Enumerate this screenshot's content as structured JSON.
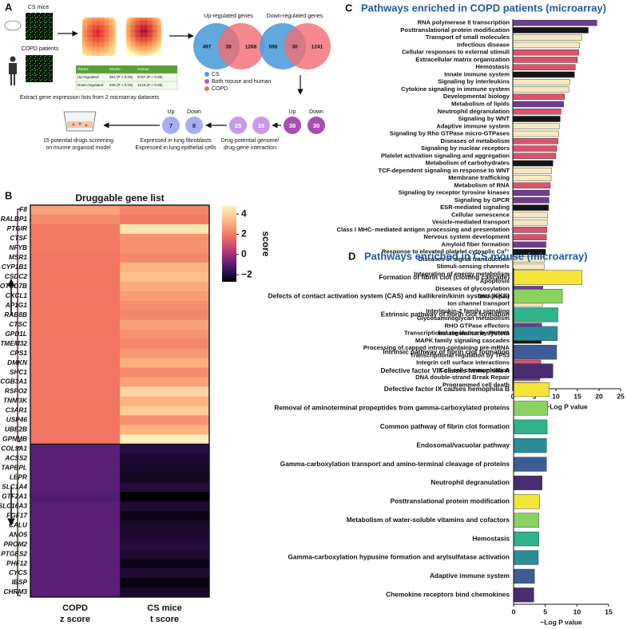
{
  "diagram": {
    "panel": "A",
    "cs_mice": "CS mice",
    "copd_patients": "COPD patients",
    "table": {
      "header": [
        "Genes",
        "Mouse",
        "Human"
      ],
      "rows": [
        [
          "Up-regulated",
          "554 (P < 0.05)",
          "5757 (P < 0.05)"
        ],
        [
          "Down-regulated",
          "639 (P < 0.05)",
          "1518 (P < 0.05)"
        ]
      ]
    },
    "caption": "Extract gene expression lists from 2 microarray datasets",
    "venn_up": {
      "title": "Up-regulated genes",
      "left": "497",
      "both": "38",
      "right": "1268"
    },
    "venn_down": {
      "title": "Down-regulated genes",
      "left": "598",
      "both": "30",
      "right": "1241"
    },
    "legend": [
      "CS",
      "Both mouse and human",
      "COPD"
    ],
    "shared": {
      "up_label": "Up",
      "down_label": "Down",
      "up": "38",
      "down": "30"
    },
    "drug": {
      "up": "25",
      "down": "16",
      "lines": [
        "Drug potential genome/",
        "drug-gene interaction"
      ]
    },
    "expressed": {
      "up_label": "Up",
      "down_label": "Down",
      "up": "7",
      "down": "8",
      "lines": [
        "Expressed in lung fibroblasts",
        "Expressed in lung epithelial cells"
      ]
    },
    "screening": [
      "15 potential drugs screening",
      "on murine organoid model"
    ]
  },
  "chart_data": [
    {
      "type": "heatmap",
      "panel": "B",
      "title": "Druggable gene list",
      "rows": [
        "F8",
        "RALBP1",
        "PTGIR",
        "CTSF",
        "NFYB",
        "MSR1",
        "CYP1B1",
        "CSDC2",
        "OTUD7B",
        "CXCL1",
        "AP1G1",
        "RAB8B",
        "CTSC",
        "GPD1L",
        "TMEM32",
        "CPS1",
        "DMKN",
        "SHC1",
        "SCGB3A1",
        "RSPO2",
        "TNNI3K",
        "C3AR1",
        "USP46",
        "UBE2B",
        "GPNMB",
        "COL9A1",
        "ACSS2",
        "TAPBPL",
        "LEPR",
        "SLC1A4",
        "GTF2A1",
        "SLC16A3",
        "FGF17",
        "CALU",
        "ANO5",
        "PROM2",
        "PTGES2",
        "PHF12",
        "CYCS",
        "IBSP",
        "CHRM3"
      ],
      "columns": [
        "COPD",
        "CS mice"
      ],
      "column_subtitles": [
        "z score",
        "t score"
      ],
      "values": [
        [
          2.8,
          2.2
        ],
        [
          2.4,
          2.0
        ],
        [
          2.0,
          4.4
        ],
        [
          2.0,
          2.5
        ],
        [
          2.0,
          2.5
        ],
        [
          1.9,
          2.3
        ],
        [
          1.9,
          3.2
        ],
        [
          1.9,
          3.5
        ],
        [
          1.9,
          3.0
        ],
        [
          1.9,
          2.7
        ],
        [
          1.9,
          2.4
        ],
        [
          1.9,
          2.3
        ],
        [
          1.9,
          2.8
        ],
        [
          1.9,
          2.5
        ],
        [
          1.9,
          2.3
        ],
        [
          1.9,
          2.6
        ],
        [
          1.9,
          3.1
        ],
        [
          1.9,
          2.4
        ],
        [
          1.9,
          2.8
        ],
        [
          1.9,
          4.0
        ],
        [
          1.9,
          3.2
        ],
        [
          1.9,
          3.8
        ],
        [
          1.9,
          2.5
        ],
        [
          1.9,
          3.2
        ],
        [
          1.9,
          4.6
        ],
        [
          -1.0,
          -1.9
        ],
        [
          -1.0,
          -2.1
        ],
        [
          -1.0,
          -2.2
        ],
        [
          -1.0,
          -2.3
        ],
        [
          -1.0,
          -2.0
        ],
        [
          -1.1,
          -2.7
        ],
        [
          -1.0,
          -2.1
        ],
        [
          -1.0,
          -2.4
        ],
        [
          -1.0,
          -2.2
        ],
        [
          -1.0,
          -2.1
        ],
        [
          -1.0,
          -2.0
        ],
        [
          -1.0,
          -2.1
        ],
        [
          -1.0,
          -2.4
        ],
        [
          -1.0,
          -2.0
        ],
        [
          -1.0,
          -2.5
        ],
        [
          -1.0,
          -2.2
        ]
      ],
      "clim": [
        -2.7,
        4.8
      ],
      "colorbar_ticks": [
        4,
        2,
        0,
        {
          "value": -2,
          "label": "−2"
        }
      ],
      "colorbar_label": "score",
      "colors": [
        "#000004",
        "#4b1a75",
        "#b63679",
        "#f1705f",
        "#fdb985",
        "#fdf3c0"
      ]
    },
    {
      "type": "barh",
      "panel": "C",
      "title": "Pathways enriched in COPD patients (microarray)",
      "categories": [
        "RNA polymerase II transcription",
        "Posttranslational protein modification",
        "Transport of small molecules",
        "Infectious disease",
        "Cellular responses to external stimuli",
        "Extracellular matrix organization",
        "Hemostasis",
        "Innate immune system",
        "Signaling by interleukins",
        "Cytokine signaling in immune system",
        "Developmental biology",
        "Metabolism of lipids",
        "Neutrophil degranulation",
        "Signaling by WNT",
        "Adaptive immune system",
        "Signaling by Rho GTPase micro-GTPases",
        "Diseases of metabolism",
        "Signaling by nuclear receptors",
        "Platelet activation signaling and aggregation",
        "Metabolism of carbohydrates",
        "TCF-dependent signaling in response to WNT",
        "Membrane trafficking",
        "Metabolism of RNA",
        "Signaling by receptor tyrosine kinases",
        "Signaling by GPCR",
        "ESR-mediated signaling",
        "Cellular senescence",
        "Vesicle-mediated transport",
        "Class I MHC–mediated antigen processing and presentation",
        "Nervous system development",
        "Amyloid fiber formation",
        "Response to elevated platelet cytosolic Ca²⁺",
        "Diseases of signal transduction",
        "Stimuli-sensing channels",
        "Integration of energy metabolism",
        "Apoptosis",
        "Diseases of glycosylation",
        "DNA repair",
        "Ion channel transport",
        "Interleukin-2 family signaling",
        "Glycosaminoglycan metabolism",
        "RHO GTPase effectors",
        "Transcriptional regulation by RUNX1",
        "MAPK family signaling cascades",
        "Processing of capped intron-containing pre-mRNA",
        "Transcriptional regulation by TP53",
        "Integrin cell surface interactions",
        "Cell-cell communication",
        "DNA double-strand Break Repair",
        "Programmed cell death"
      ],
      "values": [
        19.5,
        17.5,
        16,
        15.5,
        15.3,
        15,
        14.5,
        14.3,
        13.2,
        13,
        12,
        11.8,
        11.2,
        11,
        10.8,
        10.7,
        10.5,
        10.2,
        10,
        9.3,
        9,
        8.9,
        8.7,
        8.5,
        8.4,
        8.3,
        8.1,
        8,
        7.9,
        7.8,
        7.7,
        7.6,
        7.4,
        7.3,
        7.2,
        7.1,
        7,
        7,
        6.9,
        6.8,
        6.8,
        6.7,
        6.7,
        6.6,
        6.6,
        6.5,
        6.5,
        6.4,
        6.3,
        6.2
      ],
      "colors": [
        "#6e3d8f",
        "#151515",
        "#f7e9bd",
        "#f7e9bd",
        "#d9546c",
        "#d9546c",
        "#d9546c",
        "#151515",
        "#f7e9bd",
        "#f7e9bd",
        "#d9546c",
        "#6e3d8f",
        "#d9546c",
        "#151515",
        "#f7e9bd",
        "#f7e9bd",
        "#d9546c",
        "#d9546c",
        "#d9546c",
        "#151515",
        "#f7e9bd",
        "#f7e9bd",
        "#d9546c",
        "#6e3d8f",
        "#6e3d8f",
        "#151515",
        "#f7e9bd",
        "#f7e9bd",
        "#d9546c",
        "#d9546c",
        "#6e3d8f",
        "#151515",
        "#f7e9bd",
        "#f7e9bd",
        "#d9546c",
        "#6e3d8f",
        "#6e3d8f",
        "#151515",
        "#f7e9bd",
        "#f7e9bd",
        "#d9546c",
        "#6e3d8f",
        "#6e3d8f",
        "#151515",
        "#f7e9bd",
        "#f7e9bd",
        "#d9546c",
        "#6e3d8f",
        "#6e3d8f",
        "#151515"
      ],
      "xlim": [
        0,
        25
      ],
      "xticks": [
        0,
        5,
        10,
        15,
        20,
        25
      ],
      "xlabel": "−Log P value"
    },
    {
      "type": "barh",
      "panel": "D",
      "title": "Pathways enriched in CS mouse (microarray)",
      "categories": [
        "Formation of fibrin clot (clotting cascade)",
        "Defects of contact activation system (CAS) and kallikrein/kinin system (KKS)",
        "Extrinsic pathway of fibrin clot formation",
        "Innate immune system",
        "Intrinsic pathway of fibrin clot formation",
        "Defective factor VIII causes hemophilia A",
        "Defective factor IX causes hemophilia B",
        "Removal of aminoterminal propeptides from gamma-carboxylated proteins",
        "Common pathway of fibrin clot formation",
        "Endosomal/vacuolar pathway",
        "Gamma-carboxylation transport and amino-terminal cleavage of proteins",
        "Neutrophil degranulation",
        "Posttranslational protein modification",
        "Metabolism of water-soluble vitamins and cofactors",
        "Hemostasis",
        "Gamma-carboxylation hypusine formation and arylsulfatase activation",
        "Adaptive immune system",
        "Chemokine receptors bind chemokines"
      ],
      "values": [
        10.8,
        7.7,
        7,
        6.9,
        6.8,
        6.2,
        5.6,
        5.4,
        5.3,
        5.2,
        5.2,
        4.5,
        4.1,
        4,
        4,
        3.9,
        3.3,
        3.2
      ],
      "colors": [
        "#f5e43a",
        "#8ad25f",
        "#2fb38a",
        "#2a8d9a",
        "#3c5d98",
        "#4a2d6e",
        "#f5e43a",
        "#8ad25f",
        "#2fb38a",
        "#2a8d9a",
        "#3c5d98",
        "#4a2d6e",
        "#f5e43a",
        "#8ad25f",
        "#2fb38a",
        "#2a8d9a",
        "#3c5d98",
        "#4a2d6e"
      ],
      "xlim": [
        0,
        15
      ],
      "xticks": [
        0,
        5,
        10,
        15
      ],
      "xlabel": "−Log P value"
    }
  ]
}
